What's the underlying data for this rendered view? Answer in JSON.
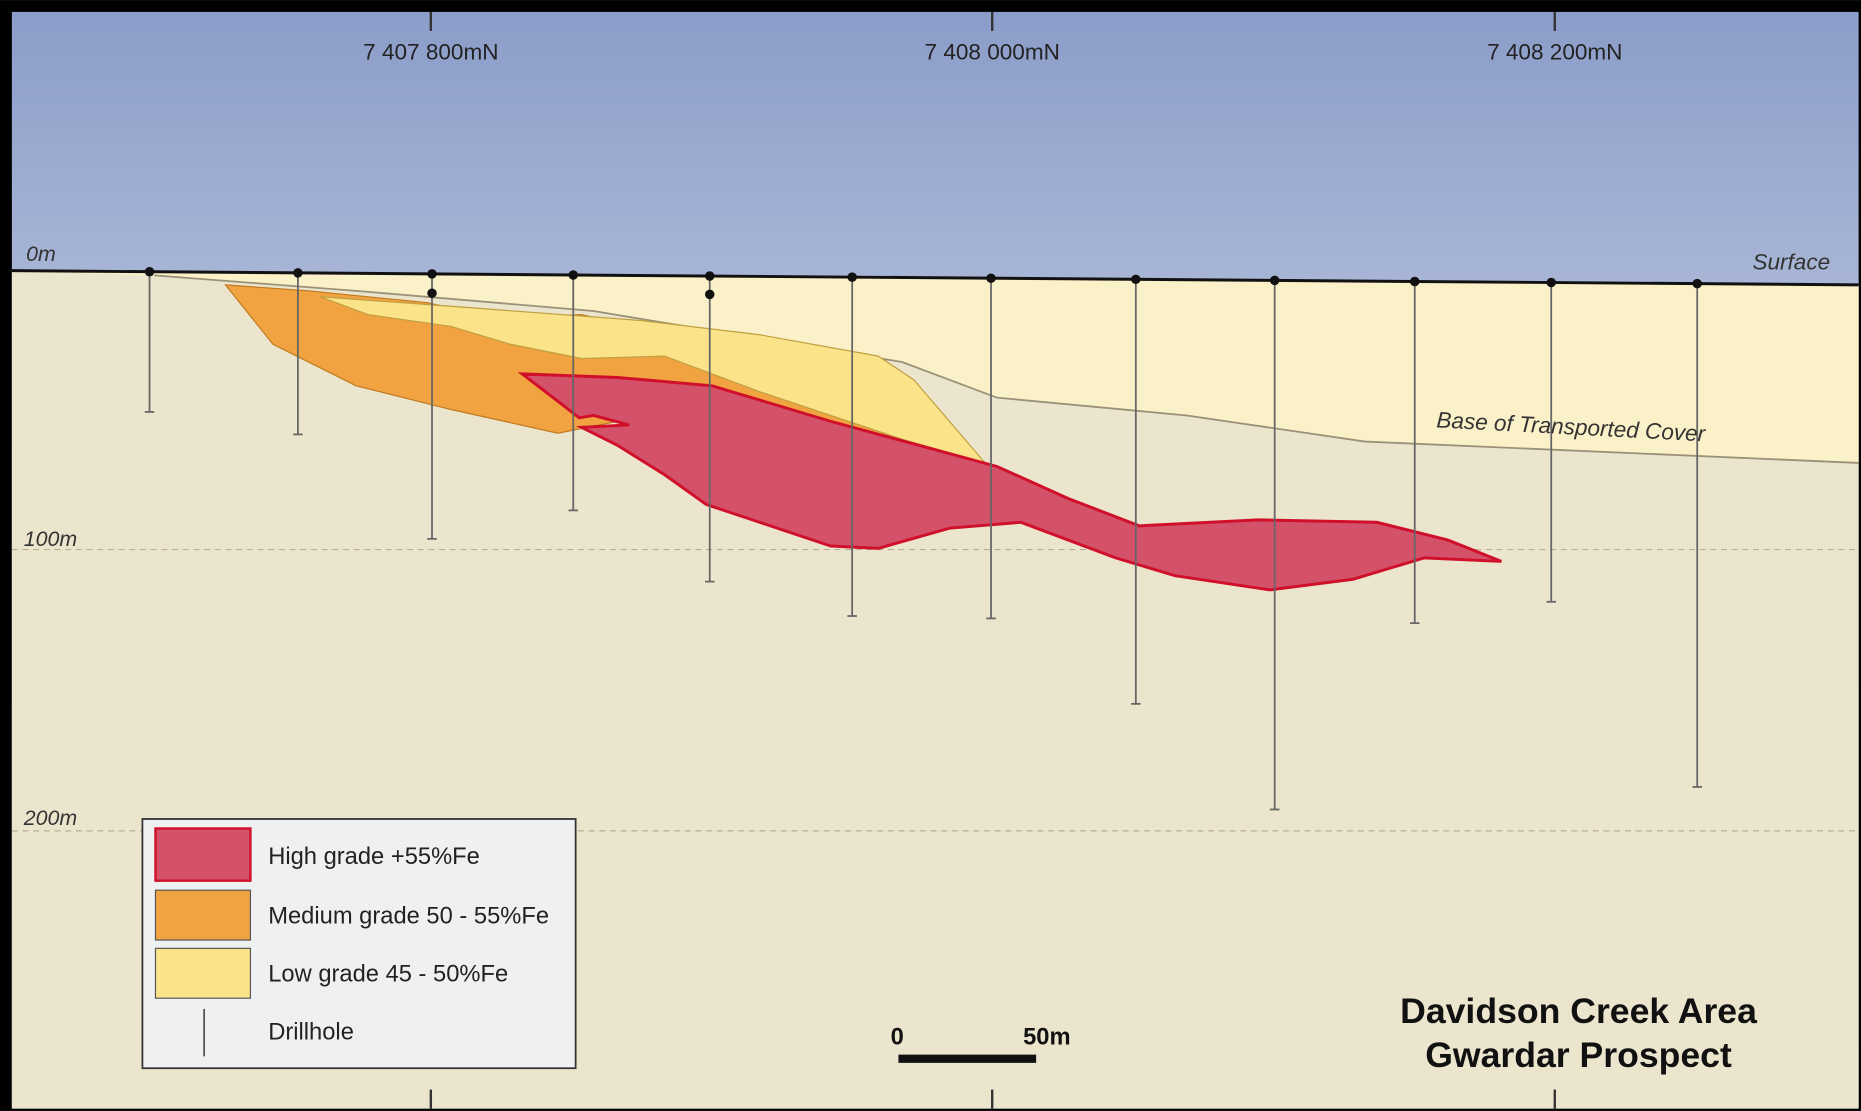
{
  "northings": [
    "7 407 800mN",
    "7 408 000mN",
    "7 408 200mN"
  ],
  "depths": [
    "0m",
    "100m",
    "200m"
  ],
  "labels": {
    "surface": "Surface",
    "base": "Base of Transported Cover"
  },
  "legend": [
    "High grade +55%Fe",
    "Medium grade 50 - 55%Fe",
    "Low grade 45 - 50%Fe",
    "Drillhole"
  ],
  "scale_bar": {
    "start": "0",
    "end": "50m"
  },
  "title": [
    "Davidson Creek Area",
    "Gwardar Prospect"
  ]
}
